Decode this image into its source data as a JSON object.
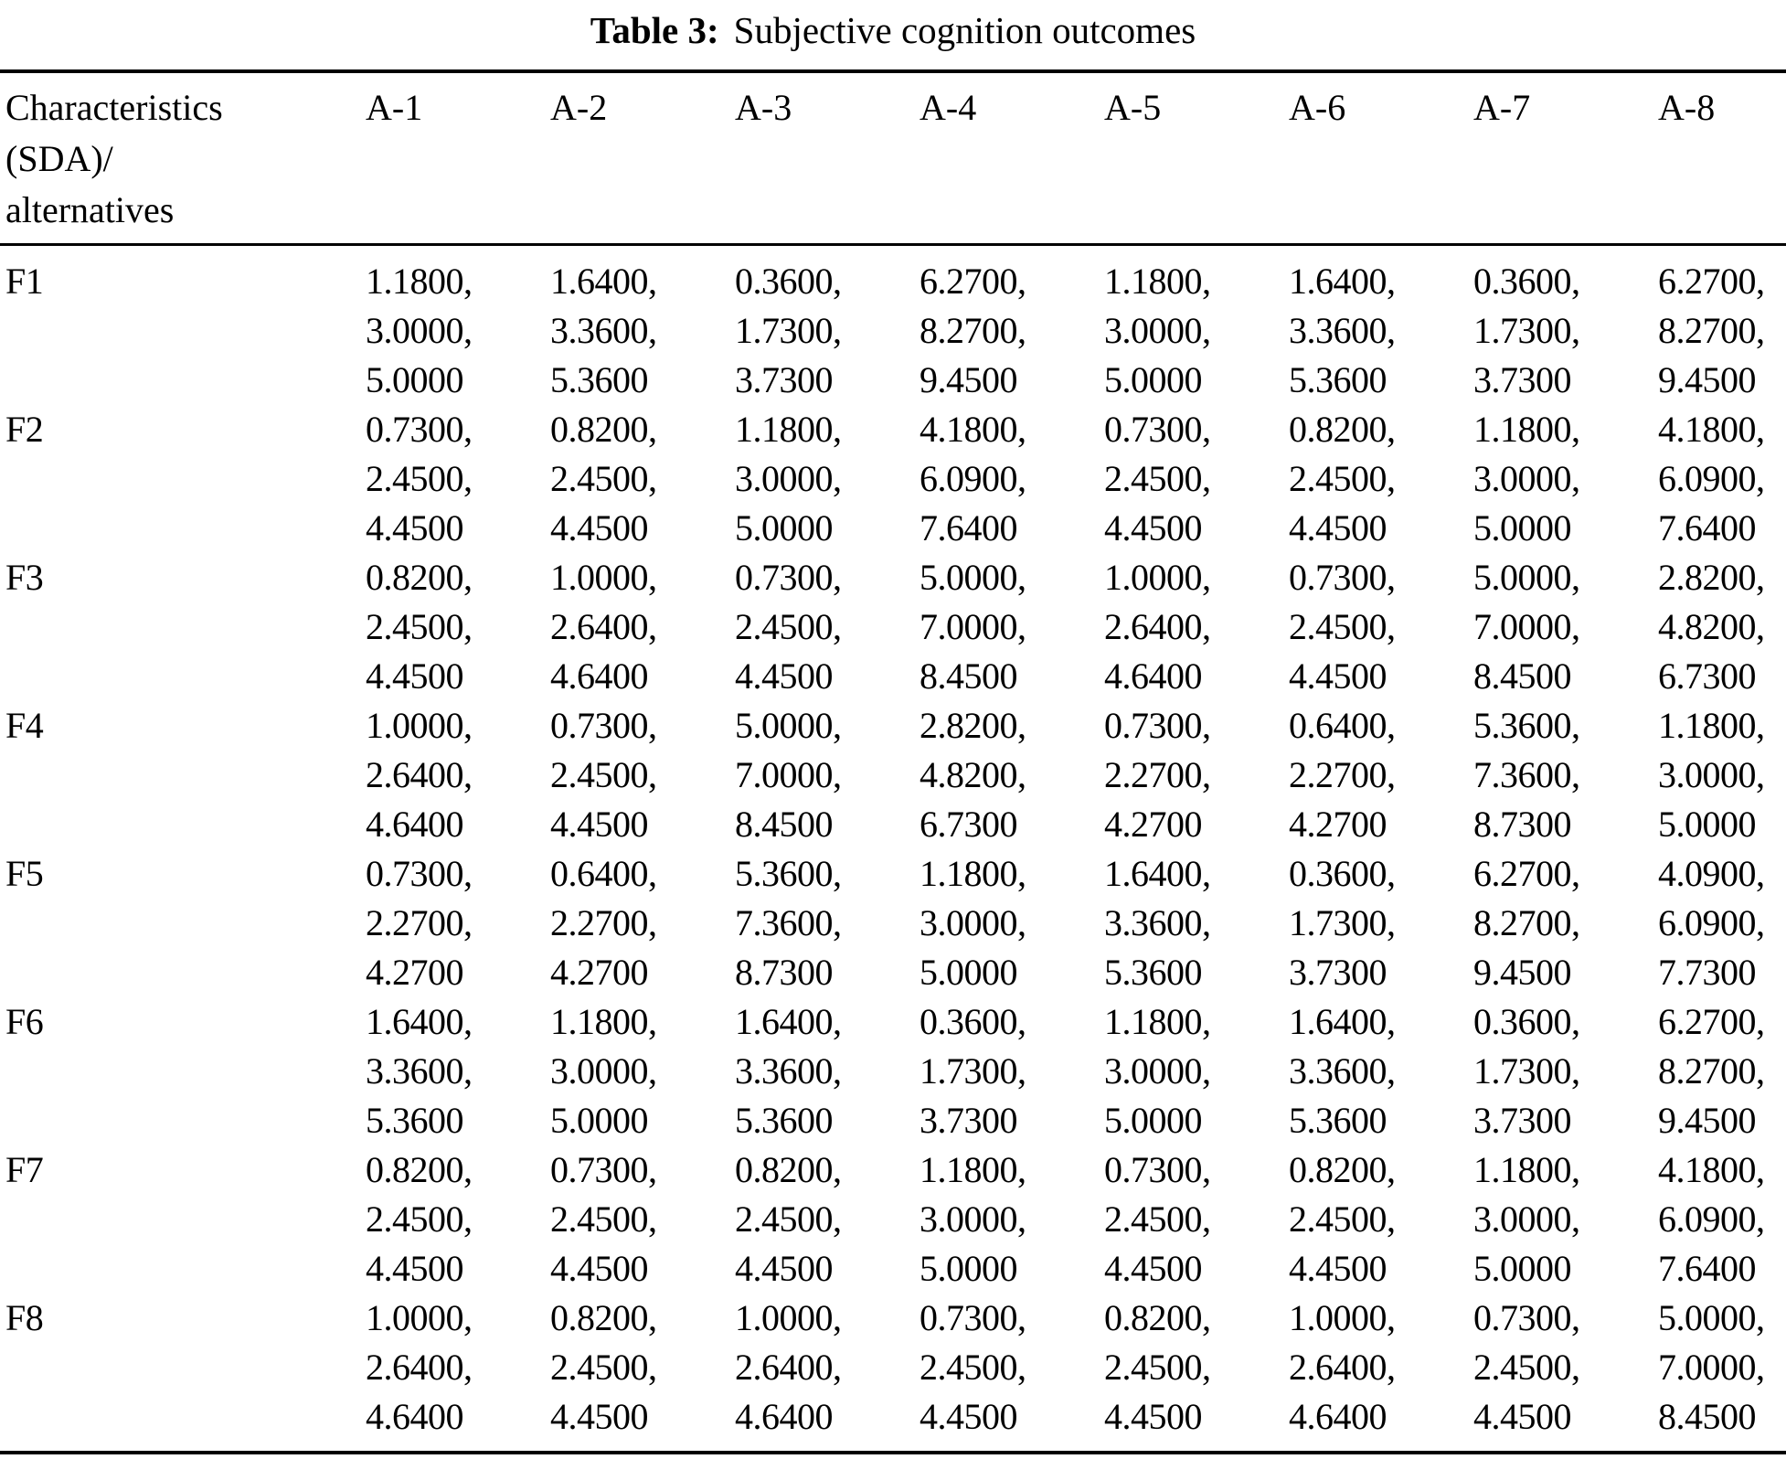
{
  "page": {
    "title_label": "Table 3:",
    "title_text": "Subjective cognition outcomes"
  },
  "table": {
    "value_separator": ",",
    "header": {
      "first_column_lines": [
        "Characteristics",
        "(SDA)/",
        "alternatives"
      ],
      "columns": [
        "A-1",
        "A-2",
        "A-3",
        "A-4",
        "A-5",
        "A-6",
        "A-7",
        "A-8"
      ]
    },
    "rows": [
      {
        "label": "F1",
        "cells": [
          [
            "1.1800",
            "3.0000",
            "5.0000"
          ],
          [
            "1.6400",
            "3.3600",
            "5.3600"
          ],
          [
            "0.3600",
            "1.7300",
            "3.7300"
          ],
          [
            "6.2700",
            "8.2700",
            "9.4500"
          ],
          [
            "1.1800",
            "3.0000",
            "5.0000"
          ],
          [
            "1.6400",
            "3.3600",
            "5.3600"
          ],
          [
            "0.3600",
            "1.7300",
            "3.7300"
          ],
          [
            "6.2700",
            "8.2700",
            "9.4500"
          ]
        ]
      },
      {
        "label": "F2",
        "cells": [
          [
            "0.7300",
            "2.4500",
            "4.4500"
          ],
          [
            "0.8200",
            "2.4500",
            "4.4500"
          ],
          [
            "1.1800",
            "3.0000",
            "5.0000"
          ],
          [
            "4.1800",
            "6.0900",
            "7.6400"
          ],
          [
            "0.7300",
            "2.4500",
            "4.4500"
          ],
          [
            "0.8200",
            "2.4500",
            "4.4500"
          ],
          [
            "1.1800",
            "3.0000",
            "5.0000"
          ],
          [
            "4.1800",
            "6.0900",
            "7.6400"
          ]
        ]
      },
      {
        "label": "F3",
        "cells": [
          [
            "0.8200",
            "2.4500",
            "4.4500"
          ],
          [
            "1.0000",
            "2.6400",
            "4.6400"
          ],
          [
            "0.7300",
            "2.4500",
            "4.4500"
          ],
          [
            "5.0000",
            "7.0000",
            "8.4500"
          ],
          [
            "1.0000",
            "2.6400",
            "4.6400"
          ],
          [
            "0.7300",
            "2.4500",
            "4.4500"
          ],
          [
            "5.0000",
            "7.0000",
            "8.4500"
          ],
          [
            "2.8200",
            "4.8200",
            "6.7300"
          ]
        ]
      },
      {
        "label": "F4",
        "cells": [
          [
            "1.0000",
            "2.6400",
            "4.6400"
          ],
          [
            "0.7300",
            "2.4500",
            "4.4500"
          ],
          [
            "5.0000",
            "7.0000",
            "8.4500"
          ],
          [
            "2.8200",
            "4.8200",
            "6.7300"
          ],
          [
            "0.7300",
            "2.2700",
            "4.2700"
          ],
          [
            "0.6400",
            "2.2700",
            "4.2700"
          ],
          [
            "5.3600",
            "7.3600",
            "8.7300"
          ],
          [
            "1.1800",
            "3.0000",
            "5.0000"
          ]
        ]
      },
      {
        "label": "F5",
        "cells": [
          [
            "0.7300",
            "2.2700",
            "4.2700"
          ],
          [
            "0.6400",
            "2.2700",
            "4.2700"
          ],
          [
            "5.3600",
            "7.3600",
            "8.7300"
          ],
          [
            "1.1800",
            "3.0000",
            "5.0000"
          ],
          [
            "1.6400",
            "3.3600",
            "5.3600"
          ],
          [
            "0.3600",
            "1.7300",
            "3.7300"
          ],
          [
            "6.2700",
            "8.2700",
            "9.4500"
          ],
          [
            "4.0900",
            "6.0900",
            "7.7300"
          ]
        ]
      },
      {
        "label": "F6",
        "cells": [
          [
            "1.6400",
            "3.3600",
            "5.3600"
          ],
          [
            "1.1800",
            "3.0000",
            "5.0000"
          ],
          [
            "1.6400",
            "3.3600",
            "5.3600"
          ],
          [
            "0.3600",
            "1.7300",
            "3.7300"
          ],
          [
            "1.1800",
            "3.0000",
            "5.0000"
          ],
          [
            "1.6400",
            "3.3600",
            "5.3600"
          ],
          [
            "0.3600",
            "1.7300",
            "3.7300"
          ],
          [
            "6.2700",
            "8.2700",
            "9.4500"
          ]
        ]
      },
      {
        "label": "F7",
        "cells": [
          [
            "0.8200",
            "2.4500",
            "4.4500"
          ],
          [
            "0.7300",
            "2.4500",
            "4.4500"
          ],
          [
            "0.8200",
            "2.4500",
            "4.4500"
          ],
          [
            "1.1800",
            "3.0000",
            "5.0000"
          ],
          [
            "0.7300",
            "2.4500",
            "4.4500"
          ],
          [
            "0.8200",
            "2.4500",
            "4.4500"
          ],
          [
            "1.1800",
            "3.0000",
            "5.0000"
          ],
          [
            "4.1800",
            "6.0900",
            "7.6400"
          ]
        ]
      },
      {
        "label": "F8",
        "cells": [
          [
            "1.0000",
            "2.6400",
            "4.6400"
          ],
          [
            "0.8200",
            "2.4500",
            "4.4500"
          ],
          [
            "1.0000",
            "2.6400",
            "4.6400"
          ],
          [
            "0.7300",
            "2.4500",
            "4.4500"
          ],
          [
            "0.8200",
            "2.4500",
            "4.4500"
          ],
          [
            "1.0000",
            "2.6400",
            "4.6400"
          ],
          [
            "0.7300",
            "2.4500",
            "4.4500"
          ],
          [
            "5.0000",
            "7.0000",
            "8.4500"
          ]
        ]
      }
    ]
  }
}
